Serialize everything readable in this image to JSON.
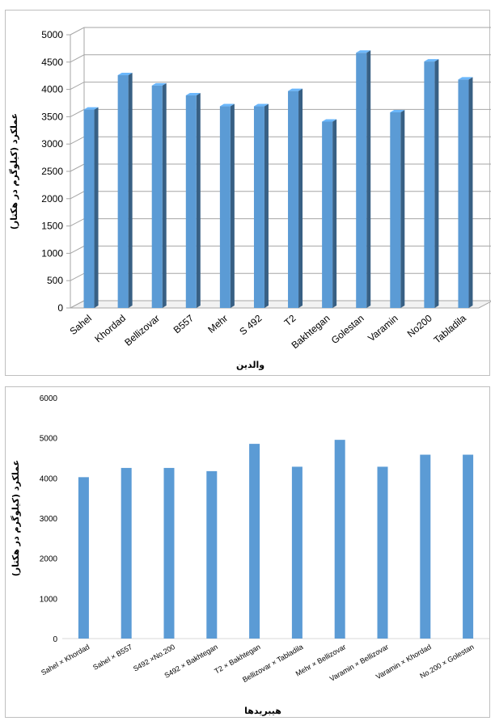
{
  "chart_data": [
    {
      "type": "bar",
      "style": "3d",
      "title": "",
      "xlabel": "والدین",
      "ylabel": "عملکرد (کیلوگرم در هکتار)",
      "ylim": [
        0,
        5000
      ],
      "yticks": [
        0,
        500,
        1000,
        1500,
        2000,
        2500,
        3000,
        3500,
        4000,
        4500,
        5000
      ],
      "grid": true,
      "categories": [
        "Sahel",
        "Khordad",
        "Bellizovar",
        "B557",
        "Mehr",
        "S 492",
        "T2",
        "Bakhtegan",
        "Golestan",
        "Varamin",
        "No200",
        "Tabladila"
      ],
      "values": [
        3630,
        4260,
        4070,
        3890,
        3690,
        3690,
        3970,
        3410,
        4670,
        3580,
        4510,
        4180
      ],
      "bar_color": "#5b9bd5"
    },
    {
      "type": "bar",
      "title": "",
      "xlabel": "هیبریدها",
      "ylabel": "عملکرد (کیلوگرم در هکتار)",
      "ylim": [
        0,
        6000
      ],
      "yticks": [
        0,
        1000,
        2000,
        3000,
        4000,
        5000,
        6000
      ],
      "grid": false,
      "categories": [
        "Sahel × Khordad",
        "Sahel × B557",
        "S492 ×No.200",
        "S492 × Bakhtegan",
        "T2 × Bakhtegan",
        "Bellizovar × Tabladila",
        "Mehr × Bellizovar",
        "Varamin × Bellizovar",
        "Varamin × Khordad",
        "No.200 × Golestan"
      ],
      "values": [
        4020,
        4250,
        4250,
        4170,
        4850,
        4280,
        4950,
        4280,
        4580,
        4580
      ],
      "bar_color": "#5b9bd5"
    }
  ]
}
